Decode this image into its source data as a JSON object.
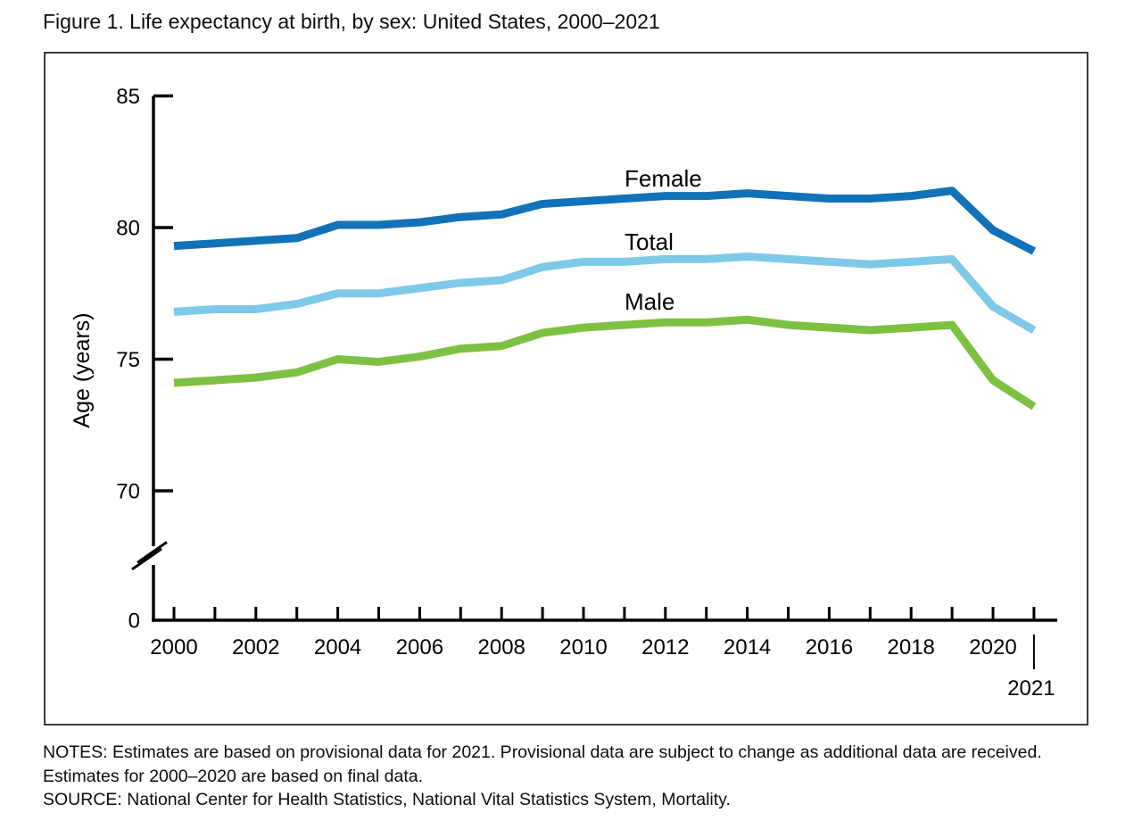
{
  "figure": {
    "title": "Figure 1. Life expectancy at birth, by sex: United States, 2000–2021",
    "notes": [
      "NOTES: Estimates are based on provisional data for 2021. Provisional data are subject to change as additional data are received.",
      "Estimates for 2000–2020 are based on final data.",
      "SOURCE: National Center for Health Statistics, National Vital Statistics System, Mortality."
    ]
  },
  "chart_data": {
    "type": "line",
    "title": "Figure 1. Life expectancy at birth, by sex: United States, 2000–2021",
    "xlabel": "",
    "ylabel": "Age (years)",
    "x": [
      2000,
      2001,
      2002,
      2003,
      2004,
      2005,
      2006,
      2007,
      2008,
      2009,
      2010,
      2011,
      2012,
      2013,
      2014,
      2015,
      2016,
      2017,
      2018,
      2019,
      2020,
      2021
    ],
    "x_axis": {
      "tick_labels": [
        "2000",
        "2002",
        "2004",
        "2006",
        "2008",
        "2010",
        "2012",
        "2014",
        "2016",
        "2018",
        "2020"
      ],
      "minor_ticks_every_year": true,
      "callout_label": "2021",
      "callout_year": 2021
    },
    "y_axis": {
      "ticks": [
        85,
        80,
        75,
        70
      ],
      "zero_label": "0",
      "axis_break": true,
      "display_range": [
        70,
        85
      ]
    },
    "grid": false,
    "legend_position": "inline-labels-right-of-center",
    "series": [
      {
        "name": "Female",
        "color": "#1172B8",
        "values": [
          79.3,
          79.4,
          79.5,
          79.6,
          80.1,
          80.1,
          80.2,
          80.4,
          80.5,
          80.9,
          81.0,
          81.1,
          81.2,
          81.2,
          81.3,
          81.2,
          81.1,
          81.1,
          81.2,
          81.4,
          79.9,
          79.1
        ]
      },
      {
        "name": "Total",
        "color": "#7EC9E7",
        "values": [
          76.8,
          76.9,
          76.9,
          77.1,
          77.5,
          77.5,
          77.7,
          77.9,
          78.0,
          78.5,
          78.7,
          78.7,
          78.8,
          78.8,
          78.9,
          78.8,
          78.7,
          78.6,
          78.7,
          78.8,
          77.0,
          76.1
        ]
      },
      {
        "name": "Male",
        "color": "#7DC142",
        "values": [
          74.1,
          74.2,
          74.3,
          74.5,
          75.0,
          74.9,
          75.1,
          75.4,
          75.5,
          76.0,
          76.2,
          76.3,
          76.4,
          76.4,
          76.5,
          76.3,
          76.2,
          76.1,
          76.2,
          76.3,
          74.2,
          73.2
        ]
      }
    ]
  }
}
